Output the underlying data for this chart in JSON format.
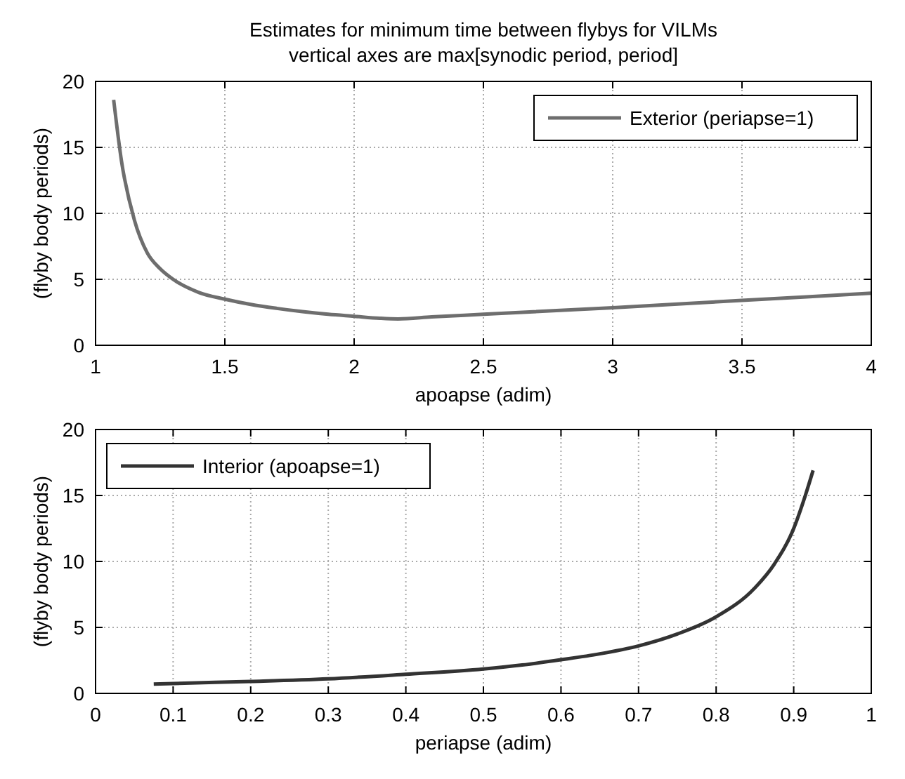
{
  "chart_data": [
    {
      "type": "line",
      "title": "Estimates for minimum time between flybys for VILMs",
      "subtitle": "vertical axes are max[synodic period, period]",
      "xlabel": "apoapse (adim)",
      "ylabel": "(flyby body periods)",
      "xlim": [
        1,
        4
      ],
      "xticks": [
        1,
        1.5,
        2,
        2.5,
        3,
        3.5,
        4
      ],
      "ylim": [
        0,
        20
      ],
      "yticks": [
        0,
        5,
        10,
        15,
        20
      ],
      "grid": true,
      "legend": "top right",
      "series": [
        {
          "name": "Exterior (periapse=1)",
          "color": "#6e6e6e",
          "x": [
            1.07,
            1.1,
            1.15,
            1.2,
            1.25,
            1.3,
            1.4,
            1.5,
            1.6,
            1.7,
            1.8,
            1.9,
            2.0,
            2.1,
            2.17,
            2.3,
            2.5,
            3.0,
            3.5,
            4.0
          ],
          "values": [
            18.6,
            14,
            9.5,
            7,
            5.8,
            5,
            4,
            3.5,
            3.1,
            2.8,
            2.55,
            2.35,
            2.2,
            2.05,
            2.0,
            2.15,
            2.35,
            2.85,
            3.4,
            3.95
          ]
        }
      ]
    },
    {
      "type": "line",
      "xlabel": "periapse (adim)",
      "ylabel": "(flyby body periods)",
      "xlim": [
        0,
        1
      ],
      "xticks": [
        0,
        0.1,
        0.2,
        0.3,
        0.4,
        0.5,
        0.6,
        0.7,
        0.8,
        0.9,
        1
      ],
      "ylim": [
        0,
        20
      ],
      "yticks": [
        0,
        5,
        10,
        15,
        20
      ],
      "grid": true,
      "legend": "top left",
      "series": [
        {
          "name": "Interior (apoapse=1)",
          "color": "#333333",
          "x": [
            0.075,
            0.1,
            0.2,
            0.3,
            0.4,
            0.5,
            0.55,
            0.6,
            0.65,
            0.7,
            0.75,
            0.8,
            0.85,
            0.875,
            0.9,
            0.915,
            0.925
          ],
          "values": [
            0.7,
            0.75,
            0.9,
            1.1,
            1.45,
            1.85,
            2.15,
            2.55,
            3.0,
            3.6,
            4.5,
            5.8,
            8.0,
            9.8,
            12.5,
            15,
            16.9
          ]
        }
      ]
    }
  ]
}
